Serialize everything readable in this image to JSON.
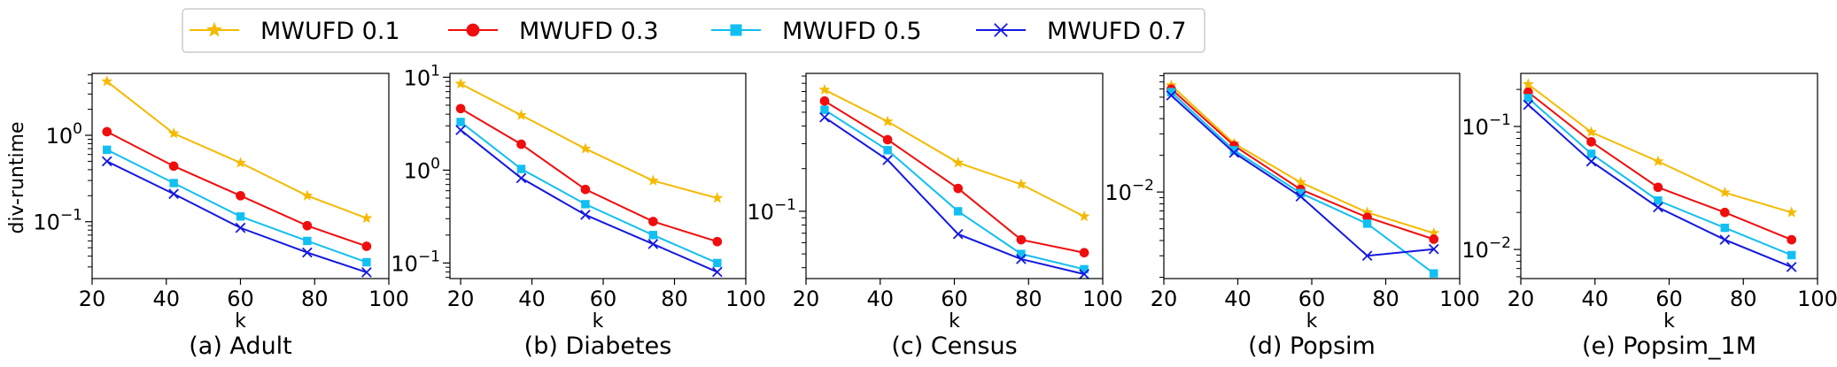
{
  "legend": {
    "placement": "top-center",
    "entries": [
      {
        "label": "MWUFD 0.1",
        "color": "#F5BA00",
        "marker": "star"
      },
      {
        "label": "MWUFD 0.3",
        "color": "#F00D0D",
        "marker": "circle"
      },
      {
        "label": "MWUFD 0.5",
        "color": "#12BFF2",
        "marker": "square"
      },
      {
        "label": "MWUFD 0.7",
        "color": "#1418E0",
        "marker": "x"
      }
    ]
  },
  "chart_data": [
    {
      "type": "line",
      "title": "(a) Adult",
      "xlabel": "k",
      "ylabel": "div-runtime",
      "yscale": "log",
      "xlim": [
        20,
        100
      ],
      "ylim": [
        0.022,
        5.2
      ],
      "x_ticks": [
        20,
        40,
        60,
        80,
        100
      ],
      "y_ticks": [
        {
          "value": 0.1,
          "label": "10",
          "exp": "−1"
        },
        {
          "value": 1,
          "label": "10",
          "exp": "0"
        }
      ],
      "x": [
        24,
        42,
        60,
        78,
        94
      ],
      "series": [
        {
          "name": "MWUFD 0.1",
          "values": [
            4.2,
            1.05,
            0.48,
            0.2,
            0.11
          ]
        },
        {
          "name": "MWUFD 0.3",
          "values": [
            1.1,
            0.44,
            0.2,
            0.09,
            0.052
          ]
        },
        {
          "name": "MWUFD 0.5",
          "values": [
            0.68,
            0.28,
            0.115,
            0.06,
            0.034
          ]
        },
        {
          "name": "MWUFD 0.7",
          "values": [
            0.5,
            0.21,
            0.085,
            0.044,
            0.026
          ]
        }
      ]
    },
    {
      "type": "line",
      "title": "(b) Diabetes",
      "xlabel": "k",
      "ylabel": "",
      "yscale": "log",
      "xlim": [
        17,
        100
      ],
      "ylim": [
        0.068,
        11
      ],
      "x_ticks": [
        20,
        40,
        60,
        80,
        100
      ],
      "y_ticks": [
        {
          "value": 0.1,
          "label": "10",
          "exp": "−1"
        },
        {
          "value": 1,
          "label": "10",
          "exp": "0"
        },
        {
          "value": 10,
          "label": "10",
          "exp": "1"
        }
      ],
      "x": [
        20,
        37,
        55,
        74,
        92
      ],
      "series": [
        {
          "name": "MWUFD 0.1",
          "values": [
            8.5,
            3.9,
            1.7,
            0.77,
            0.5
          ]
        },
        {
          "name": "MWUFD 0.3",
          "values": [
            4.6,
            1.9,
            0.62,
            0.28,
            0.17
          ]
        },
        {
          "name": "MWUFD 0.5",
          "values": [
            3.3,
            1.03,
            0.43,
            0.2,
            0.1
          ]
        },
        {
          "name": "MWUFD 0.7",
          "values": [
            2.7,
            0.82,
            0.33,
            0.16,
            0.08
          ]
        }
      ]
    },
    {
      "type": "line",
      "title": "(c) Census",
      "xlabel": "k",
      "ylabel": "",
      "yscale": "log",
      "xlim": [
        20,
        100
      ],
      "ylim": [
        0.0335,
        0.94
      ],
      "x_ticks": [
        20,
        40,
        60,
        80,
        100
      ],
      "y_ticks": [
        {
          "value": 0.1,
          "label": "10",
          "exp": "−1"
        }
      ],
      "x": [
        25,
        42,
        61,
        78,
        95
      ],
      "series": [
        {
          "name": "MWUFD 0.1",
          "values": [
            0.72,
            0.43,
            0.22,
            0.155,
            0.092
          ]
        },
        {
          "name": "MWUFD 0.3",
          "values": [
            0.6,
            0.32,
            0.145,
            0.063,
            0.051
          ]
        },
        {
          "name": "MWUFD 0.5",
          "values": [
            0.52,
            0.27,
            0.1,
            0.05,
            0.039
          ]
        },
        {
          "name": "MWUFD 0.7",
          "values": [
            0.46,
            0.23,
            0.069,
            0.046,
            0.036
          ]
        }
      ]
    },
    {
      "type": "line",
      "title": "(d) Popsim",
      "xlabel": "k",
      "ylabel": "",
      "yscale": "log",
      "xlim": [
        20,
        100
      ],
      "ylim": [
        0.00195,
        0.094
      ],
      "x_ticks": [
        20,
        40,
        60,
        80,
        100
      ],
      "y_ticks": [
        {
          "value": 0.01,
          "label": "10",
          "exp": "−2"
        }
      ],
      "x": [
        22,
        39,
        57,
        75,
        93
      ],
      "series": [
        {
          "name": "MWUFD 0.1",
          "values": [
            0.075,
            0.025,
            0.012,
            0.0068,
            0.0046
          ]
        },
        {
          "name": "MWUFD 0.3",
          "values": [
            0.07,
            0.024,
            0.0105,
            0.0062,
            0.0041
          ]
        },
        {
          "name": "MWUFD 0.5",
          "values": [
            0.066,
            0.022,
            0.0098,
            0.0055,
            0.00215
          ]
        },
        {
          "name": "MWUFD 0.7",
          "values": [
            0.062,
            0.021,
            0.0092,
            0.003,
            0.0034
          ]
        }
      ]
    },
    {
      "type": "line",
      "title": "(e) Popsim_1M",
      "xlabel": "k",
      "ylabel": "",
      "yscale": "log",
      "xlim": [
        20,
        100
      ],
      "ylim": [
        0.0058,
        0.27
      ],
      "x_ticks": [
        20,
        40,
        60,
        80,
        100
      ],
      "y_ticks": [
        {
          "value": 0.01,
          "label": "10",
          "exp": "−2"
        },
        {
          "value": 0.1,
          "label": "10",
          "exp": "−1"
        }
      ],
      "x": [
        22,
        39,
        57,
        75,
        93
      ],
      "series": [
        {
          "name": "MWUFD 0.1",
          "values": [
            0.22,
            0.09,
            0.052,
            0.029,
            0.02
          ]
        },
        {
          "name": "MWUFD 0.3",
          "values": [
            0.19,
            0.075,
            0.032,
            0.02,
            0.012
          ]
        },
        {
          "name": "MWUFD 0.5",
          "values": [
            0.17,
            0.06,
            0.025,
            0.015,
            0.009
          ]
        },
        {
          "name": "MWUFD 0.7",
          "values": [
            0.15,
            0.052,
            0.022,
            0.012,
            0.0072
          ]
        }
      ]
    }
  ]
}
